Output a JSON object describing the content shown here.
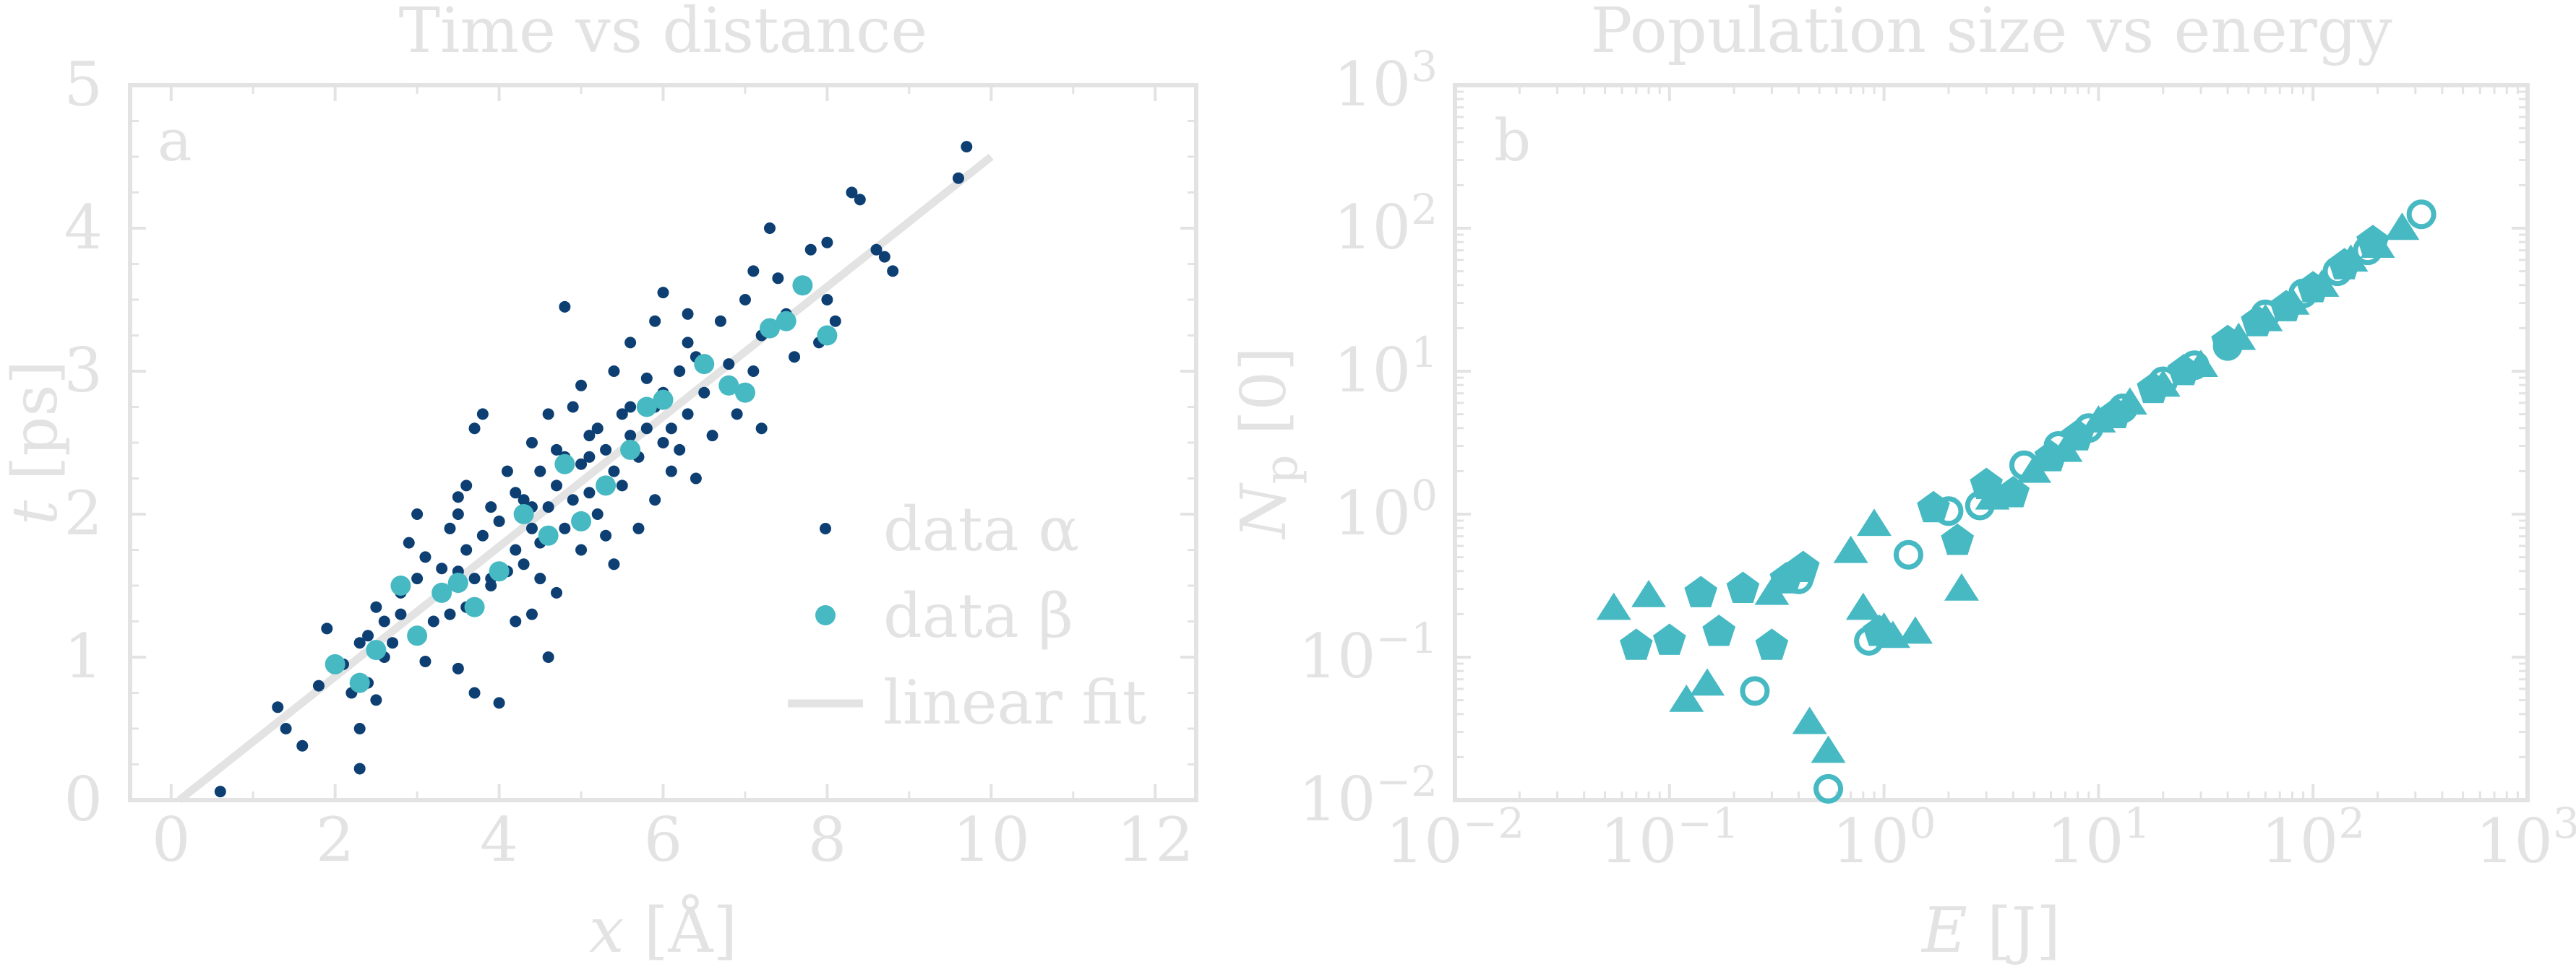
{
  "colors": {
    "axis": "#e3e3e3",
    "alpha": "#0d3f73",
    "beta": "#46b9c3",
    "fit": "#e3e3e3"
  },
  "chart_data": [
    {
      "type": "scatter",
      "title": "Time vs distance",
      "panel": "a",
      "xlabel_var": "x",
      "xlabel_unit": " [Å]",
      "ylabel_var": "t",
      "ylabel_unit": " [ps]",
      "xlim": [
        -0.5,
        12.5
      ],
      "ylim": [
        0,
        5
      ],
      "xticks": [
        "0",
        "2",
        "4",
        "6",
        "8",
        "10",
        "12"
      ],
      "yticks": [
        "0",
        "1",
        "2",
        "3",
        "4",
        "5"
      ],
      "grid": false,
      "legend_position": "bottom-right",
      "legend": [
        "data α",
        "data β",
        "linear fit"
      ],
      "series": [
        {
          "name": "data α",
          "kind": "dots",
          "points": [
            [
              0.6,
              0.06
            ],
            [
              1.3,
              0.65
            ],
            [
              1.4,
              0.5
            ],
            [
              1.6,
              0.38
            ],
            [
              1.8,
              0.8
            ],
            [
              1.9,
              1.2
            ],
            [
              2.1,
              0.95
            ],
            [
              2.2,
              0.75
            ],
            [
              2.3,
              1.1
            ],
            [
              2.3,
              0.5
            ],
            [
              2.3,
              0.22
            ],
            [
              2.4,
              1.15
            ],
            [
              2.4,
              0.82
            ],
            [
              2.5,
              1.35
            ],
            [
              2.5,
              0.7
            ],
            [
              2.6,
              1.25
            ],
            [
              2.6,
              1.0
            ],
            [
              2.8,
              1.3
            ],
            [
              2.8,
              1.45
            ],
            [
              2.9,
              1.8
            ],
            [
              3.0,
              2.0
            ],
            [
              3.0,
              1.55
            ],
            [
              3.1,
              1.7
            ],
            [
              3.1,
              0.97
            ],
            [
              3.2,
              1.25
            ],
            [
              3.3,
              1.62
            ],
            [
              3.3,
              1.45
            ],
            [
              3.4,
              1.9
            ],
            [
              3.4,
              1.3
            ],
            [
              3.5,
              2.0
            ],
            [
              3.5,
              1.6
            ],
            [
              3.5,
              0.92
            ],
            [
              3.6,
              2.2
            ],
            [
              3.6,
              1.75
            ],
            [
              3.6,
              1.35
            ],
            [
              3.7,
              2.6
            ],
            [
              3.7,
              1.55
            ],
            [
              3.7,
              0.75
            ],
            [
              3.8,
              2.7
            ],
            [
              3.8,
              1.85
            ],
            [
              3.9,
              2.05
            ],
            [
              3.9,
              1.5
            ],
            [
              4.0,
              1.95
            ],
            [
              4.0,
              0.68
            ],
            [
              4.1,
              1.6
            ],
            [
              4.1,
              2.3
            ],
            [
              4.2,
              2.15
            ],
            [
              4.2,
              1.75
            ],
            [
              4.2,
              1.25
            ],
            [
              4.3,
              2.1
            ],
            [
              4.3,
              1.65
            ],
            [
              4.4,
              2.5
            ],
            [
              4.4,
              1.9
            ],
            [
              4.4,
              1.3
            ],
            [
              4.5,
              2.3
            ],
            [
              4.5,
              1.8
            ],
            [
              4.5,
              1.55
            ],
            [
              4.6,
              2.7
            ],
            [
              4.6,
              2.05
            ],
            [
              4.6,
              1.0
            ],
            [
              4.7,
              2.45
            ],
            [
              4.7,
              2.2
            ],
            [
              4.7,
              1.45
            ],
            [
              4.8,
              3.45
            ],
            [
              4.8,
              2.4
            ],
            [
              4.8,
              1.9
            ],
            [
              4.9,
              2.75
            ],
            [
              4.9,
              2.1
            ],
            [
              5.0,
              2.9
            ],
            [
              5.0,
              2.35
            ],
            [
              5.0,
              1.75
            ],
            [
              5.1,
              2.55
            ],
            [
              5.1,
              2.15
            ],
            [
              5.2,
              2.6
            ],
            [
              5.2,
              2.0
            ],
            [
              5.3,
              2.45
            ],
            [
              5.3,
              1.85
            ],
            [
              5.4,
              3.0
            ],
            [
              5.4,
              2.3
            ],
            [
              5.4,
              1.65
            ],
            [
              5.5,
              2.7
            ],
            [
              5.5,
              2.2
            ],
            [
              5.6,
              2.55
            ],
            [
              5.6,
              3.2
            ],
            [
              5.7,
              2.4
            ],
            [
              5.7,
              1.9
            ],
            [
              5.8,
              2.95
            ],
            [
              5.8,
              2.6
            ],
            [
              5.9,
              3.35
            ],
            [
              5.9,
              2.75
            ],
            [
              5.9,
              2.1
            ],
            [
              6.0,
              2.85
            ],
            [
              6.0,
              3.55
            ],
            [
              6.1,
              2.6
            ],
            [
              6.1,
              2.3
            ],
            [
              6.2,
              3.0
            ],
            [
              6.2,
              2.45
            ],
            [
              6.3,
              3.4
            ],
            [
              6.3,
              2.7
            ],
            [
              6.4,
              3.1
            ],
            [
              6.4,
              2.25
            ],
            [
              6.5,
              3.05
            ],
            [
              6.5,
              2.85
            ],
            [
              6.6,
              2.55
            ],
            [
              6.7,
              3.35
            ],
            [
              6.8,
              3.05
            ],
            [
              6.9,
              2.7
            ],
            [
              7.0,
              3.5
            ],
            [
              7.1,
              3.7
            ],
            [
              7.1,
              3.0
            ],
            [
              7.2,
              2.6
            ],
            [
              7.2,
              3.25
            ],
            [
              7.3,
              4.0
            ],
            [
              7.4,
              3.65
            ],
            [
              7.5,
              3.4
            ],
            [
              7.6,
              3.1
            ],
            [
              7.8,
              3.85
            ],
            [
              7.9,
              3.2
            ],
            [
              8.0,
              3.5
            ],
            [
              8.0,
              3.9
            ],
            [
              8.1,
              3.35
            ],
            [
              8.3,
              4.25
            ],
            [
              8.4,
              4.2
            ],
            [
              8.6,
              3.85
            ],
            [
              8.7,
              3.8
            ],
            [
              8.8,
              3.7
            ],
            [
              9.6,
              4.35
            ],
            [
              9.7,
              4.57
            ],
            [
              3.5,
              2.12
            ],
            [
              4.4,
              2.05
            ],
            [
              5.6,
              2.75
            ],
            [
              6.3,
              3.2
            ],
            [
              2.7,
              1.1
            ],
            [
              3.9,
              1.55
            ],
            [
              5.1,
              2.4
            ],
            [
              6.0,
              2.5
            ]
          ]
        },
        {
          "name": "data β",
          "kind": "circles",
          "points": [
            [
              2.0,
              0.95
            ],
            [
              2.3,
              0.82
            ],
            [
              2.5,
              1.05
            ],
            [
              2.8,
              1.5
            ],
            [
              3.0,
              1.15
            ],
            [
              3.3,
              1.45
            ],
            [
              3.5,
              1.52
            ],
            [
              3.7,
              1.35
            ],
            [
              4.0,
              1.6
            ],
            [
              4.3,
              2.0
            ],
            [
              4.6,
              1.85
            ],
            [
              4.8,
              2.35
            ],
            [
              5.0,
              1.95
            ],
            [
              5.3,
              2.2
            ],
            [
              5.6,
              2.45
            ],
            [
              5.8,
              2.75
            ],
            [
              6.0,
              2.8
            ],
            [
              6.5,
              3.05
            ],
            [
              6.8,
              2.9
            ],
            [
              7.0,
              2.85
            ],
            [
              7.3,
              3.3
            ],
            [
              7.5,
              3.35
            ],
            [
              7.7,
              3.6
            ],
            [
              8.0,
              3.25
            ]
          ]
        },
        {
          "name": "linear fit",
          "kind": "line",
          "points": [
            [
              0.1,
              0.0
            ],
            [
              10.0,
              4.5
            ]
          ]
        }
      ]
    },
    {
      "type": "scatter",
      "title": "Population size vs energy",
      "panel": "b",
      "xlabel_var": "E",
      "xlabel_unit": " [J]",
      "ylabel_var": "N",
      "ylabel_sub": "p",
      "ylabel_unit": " [0]",
      "xscale": "log",
      "yscale": "log",
      "xlim": [
        0.01,
        1000
      ],
      "ylim": [
        0.01,
        1000
      ],
      "xtick_exponents": [
        "−2",
        "−1",
        "0",
        "1",
        "2",
        "3"
      ],
      "ytick_exponents": [
        "−2",
        "−1",
        "0",
        "1",
        "2",
        "3"
      ],
      "tick_base": "10",
      "grid": false,
      "legend": [],
      "series": [
        {
          "kind": "triangle",
          "points": [
            [
              0.055,
              0.22
            ],
            [
              0.08,
              0.27
            ],
            [
              0.12,
              0.05
            ],
            [
              0.15,
              0.065
            ],
            [
              0.3,
              0.28
            ],
            [
              0.45,
              0.035
            ],
            [
              0.55,
              0.022
            ],
            [
              0.7,
              0.55
            ],
            [
              0.8,
              0.22
            ],
            [
              0.9,
              0.85
            ],
            [
              1.0,
              0.16
            ],
            [
              1.1,
              0.14
            ],
            [
              1.4,
              0.15
            ],
            [
              2.3,
              0.3
            ],
            [
              3.2,
              1.3
            ],
            [
              5.0,
              2.0
            ],
            [
              7.0,
              2.8
            ],
            [
              10.0,
              4.5
            ],
            [
              14.0,
              6.0
            ],
            [
              20.0,
              8.0
            ],
            [
              30.0,
              11.0
            ],
            [
              45.0,
              17.0
            ],
            [
              60.0,
              23.0
            ],
            [
              80.0,
              30.0
            ],
            [
              110.0,
              40.0
            ],
            [
              150.0,
              60.0
            ],
            [
              200.0,
              75.0
            ],
            [
              260.0,
              100.0
            ]
          ]
        },
        {
          "kind": "pentagon",
          "points": [
            [
              0.07,
              0.12
            ],
            [
              0.1,
              0.13
            ],
            [
              0.14,
              0.28
            ],
            [
              0.17,
              0.15
            ],
            [
              0.22,
              0.3
            ],
            [
              0.3,
              0.12
            ],
            [
              0.35,
              0.35
            ],
            [
              0.42,
              0.42
            ],
            [
              0.95,
              0.15
            ],
            [
              1.7,
              1.1
            ],
            [
              2.2,
              0.65
            ],
            [
              3.0,
              1.6
            ],
            [
              4.0,
              1.4
            ],
            [
              6.0,
              2.5
            ],
            [
              8.0,
              3.5
            ],
            [
              12.0,
              5.0
            ],
            [
              18.0,
              7.5
            ],
            [
              25.0,
              10.0
            ],
            [
              40.0,
              16.0
            ],
            [
              55.0,
              22.0
            ],
            [
              75.0,
              28.0
            ],
            [
              100.0,
              38.0
            ],
            [
              140.0,
              55.0
            ],
            [
              190.0,
              80.0
            ]
          ]
        },
        {
          "kind": "ring",
          "points": [
            [
              0.25,
              0.058
            ],
            [
              0.4,
              0.35
            ],
            [
              0.55,
              0.012
            ],
            [
              0.85,
              0.13
            ],
            [
              1.3,
              0.52
            ],
            [
              2.0,
              1.05
            ],
            [
              2.8,
              1.15
            ],
            [
              4.5,
              2.2
            ],
            [
              6.5,
              3.0
            ],
            [
              9.0,
              4.0
            ],
            [
              13.0,
              5.5
            ],
            [
              20.0,
              8.5
            ],
            [
              28.0,
              11.0
            ],
            [
              40.0,
              15.0
            ],
            [
              60.0,
              25.0
            ],
            [
              90.0,
              35.0
            ],
            [
              130.0,
              50.0
            ],
            [
              180.0,
              70.0
            ],
            [
              320.0,
              125.0
            ]
          ]
        }
      ]
    }
  ]
}
